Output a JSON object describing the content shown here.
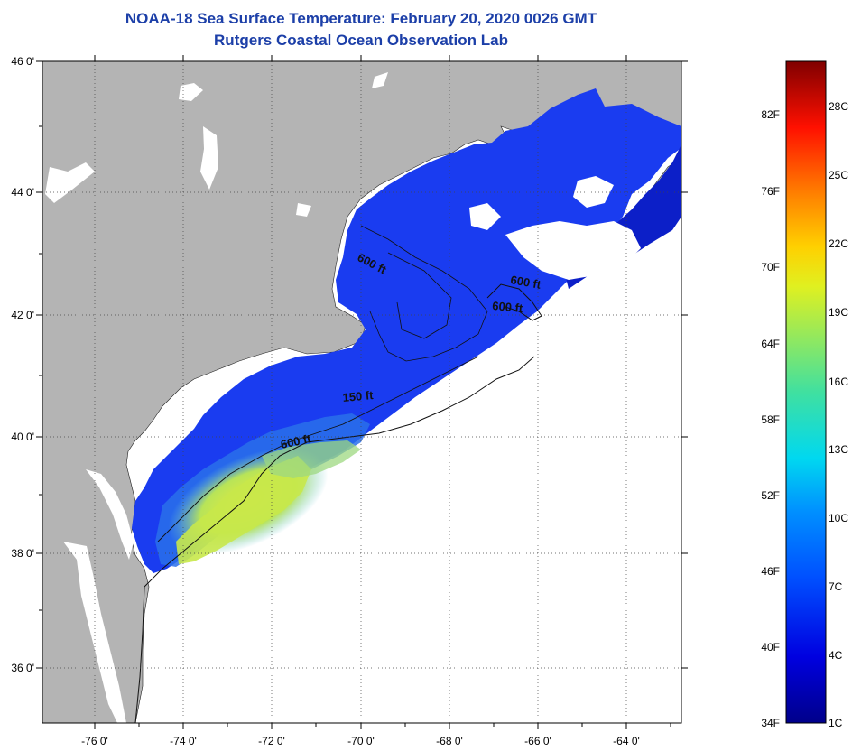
{
  "title": "NOAA-18 Sea Surface Temperature:  February 20, 2020 0026 GMT",
  "subtitle": "Rutgers Coastal Ocean Observation Lab",
  "map": {
    "lat_labels": [
      "46 0'",
      "44 0'",
      "42 0'",
      "40 0'",
      "38 0'",
      "36 0'"
    ],
    "lon_labels": [
      "-76 0'",
      "-74 0'",
      "-72 0'",
      "-70 0'",
      "-68 0'",
      "-66 0'",
      "-64 0'"
    ],
    "contour_labels": [
      "600 ft",
      "600 ft",
      "600 ft",
      "150 ft",
      "600 ft"
    ],
    "colors": {
      "land": "#b4b4b4",
      "ocean_no_data": "#ffffff",
      "sst_cold": "#1a3cf0",
      "sst_warm": "#c8e84a"
    }
  },
  "colorbar": {
    "fahrenheit_labels": [
      "82F",
      "76F",
      "70F",
      "64F",
      "58F",
      "52F",
      "46F",
      "40F",
      "34F"
    ],
    "celsius_labels": [
      "28C",
      "25C",
      "22C",
      "19C",
      "16C",
      "13C",
      "10C",
      "7C",
      "4C",
      "1C"
    ]
  }
}
